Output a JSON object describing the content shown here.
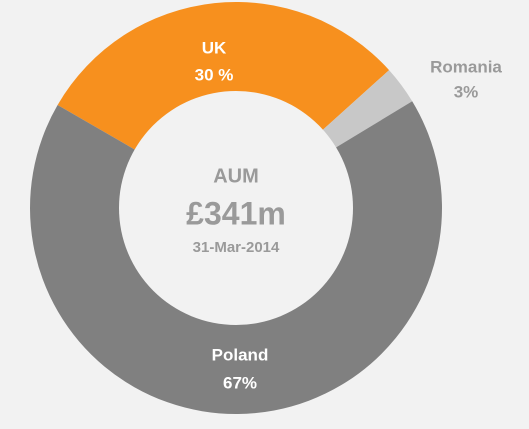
{
  "chart_data": {
    "type": "donut",
    "categories": [
      "UK",
      "Romania",
      "Poland"
    ],
    "values": [
      30,
      3,
      67
    ],
    "value_labels": [
      "30 %",
      "3%",
      "67%"
    ],
    "colors": [
      "#f7901e",
      "#c8c8c8",
      "#808080"
    ],
    "center_title": "AUM",
    "center_value": "£341m",
    "center_date": "31-Mar-2014"
  }
}
